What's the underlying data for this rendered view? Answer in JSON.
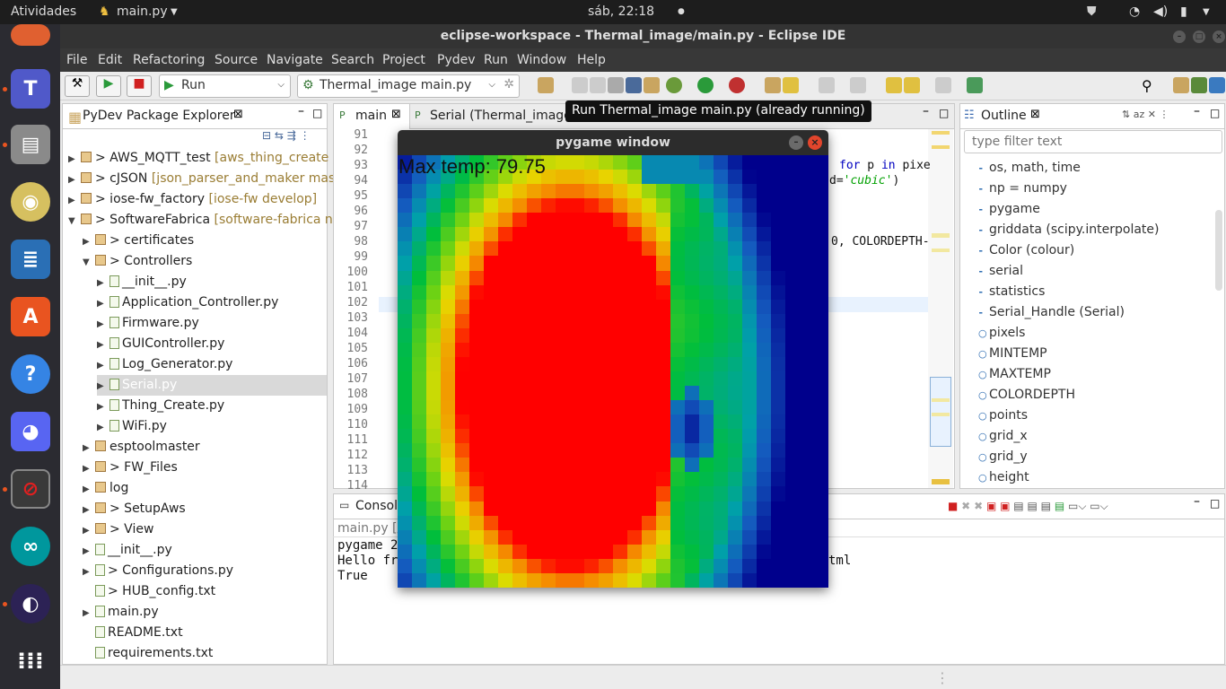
{
  "gnome": {
    "activities": "Atividades",
    "app_menu": "main.py",
    "clock": "sáb, 22:18"
  },
  "window": {
    "title": "eclipse-workspace - Thermal_image/main.py - Eclipse IDE"
  },
  "menu": [
    "File",
    "Edit",
    "Refactoring",
    "Source",
    "Navigate",
    "Search",
    "Project",
    "Pydev",
    "Run",
    "Window",
    "Help"
  ],
  "toolbar": {
    "run_combo": "Run",
    "launch_combo": "Thermal_image main.py"
  },
  "explorer": {
    "title": "PyDev Package Explorer",
    "items": [
      {
        "label": "> AWS_MQTT_test",
        "deco": " [aws_thing_create m",
        "type": "project",
        "indent": 0,
        "arrow": "▶"
      },
      {
        "label": "> cJSON",
        "deco": " [json_parser_and_maker mast",
        "type": "project",
        "indent": 0,
        "arrow": "▶"
      },
      {
        "label": "> iose-fw_factory",
        "deco": " [iose-fw develop]",
        "type": "project",
        "indent": 0,
        "arrow": "▶"
      },
      {
        "label": "> SoftwareFabrica",
        "deco": " [software-fabrica ne",
        "type": "project",
        "indent": 0,
        "arrow": "▼"
      },
      {
        "label": "> certificates",
        "deco": "",
        "type": "package",
        "indent": 1,
        "arrow": "▶"
      },
      {
        "label": "> Controllers",
        "deco": "",
        "type": "package",
        "indent": 1,
        "arrow": "▼"
      },
      {
        "label": "__init__.py",
        "deco": "",
        "type": "file",
        "indent": 2,
        "arrow": "▶"
      },
      {
        "label": "Application_Controller.py",
        "deco": "",
        "type": "file",
        "indent": 2,
        "arrow": "▶"
      },
      {
        "label": "Firmware.py",
        "deco": "",
        "type": "file",
        "indent": 2,
        "arrow": "▶"
      },
      {
        "label": "GUIController.py",
        "deco": "",
        "type": "file",
        "indent": 2,
        "arrow": "▶"
      },
      {
        "label": "Log_Generator.py",
        "deco": "",
        "type": "file",
        "indent": 2,
        "arrow": "▶"
      },
      {
        "label": "Serial.py",
        "deco": "",
        "type": "file",
        "indent": 2,
        "arrow": "▶",
        "selected": true
      },
      {
        "label": "Thing_Create.py",
        "deco": "",
        "type": "file",
        "indent": 2,
        "arrow": "▶"
      },
      {
        "label": "WiFi.py",
        "deco": "",
        "type": "file",
        "indent": 2,
        "arrow": "▶"
      },
      {
        "label": "esptoolmaster",
        "deco": "",
        "type": "package",
        "indent": 1,
        "arrow": "▶"
      },
      {
        "label": "> FW_Files",
        "deco": "",
        "type": "package",
        "indent": 1,
        "arrow": "▶"
      },
      {
        "label": "log",
        "deco": "",
        "type": "package",
        "indent": 1,
        "arrow": "▶"
      },
      {
        "label": "> SetupAws",
        "deco": "",
        "type": "package",
        "indent": 1,
        "arrow": "▶"
      },
      {
        "label": "> View",
        "deco": "",
        "type": "package",
        "indent": 1,
        "arrow": "▶"
      },
      {
        "label": "__init__.py",
        "deco": "",
        "type": "file",
        "indent": 1,
        "arrow": "▶"
      },
      {
        "label": "> Configurations.py",
        "deco": "",
        "type": "file",
        "indent": 1,
        "arrow": "▶"
      },
      {
        "label": "> HUB_config.txt",
        "deco": "",
        "type": "text",
        "indent": 1,
        "arrow": ""
      },
      {
        "label": "main.py",
        "deco": "",
        "type": "file",
        "indent": 1,
        "arrow": "▶"
      },
      {
        "label": "README.txt",
        "deco": "",
        "type": "text",
        "indent": 1,
        "arrow": ""
      },
      {
        "label": "requirements.txt",
        "deco": "",
        "type": "text",
        "indent": 1,
        "arrow": ""
      }
    ]
  },
  "editor": {
    "tabs": [
      "main",
      "Serial (Thermal_image)"
    ],
    "line_numbers": [
      "91",
      "92",
      "93",
      "94",
      "95",
      "96",
      "97",
      "98",
      "99",
      "100",
      "101",
      "102",
      "103",
      "104",
      "105",
      "106",
      "107",
      "108",
      "109",
      "110",
      "111",
      "112",
      "113",
      "114"
    ],
    "code_fragments": {
      "l93_kw": "for",
      "l93_p": " p ",
      "l93_in": "in",
      "l93_rest": " pixe",
      "l94_pre": "d=",
      "l94_str": "'cubic'",
      "l94_post": ")",
      "l98": "0, COLORDEPTH-"
    }
  },
  "tooltip": "Run Thermal_image main.py (already running)",
  "outline": {
    "title": "Outline",
    "filter_placeholder": "type filter text",
    "items": [
      {
        "label": "os, math, time",
        "kind": "import"
      },
      {
        "label": "np = numpy",
        "kind": "import"
      },
      {
        "label": "pygame",
        "kind": "import"
      },
      {
        "label": "griddata (scipy.interpolate)",
        "kind": "import"
      },
      {
        "label": "Color (colour)",
        "kind": "import"
      },
      {
        "label": "serial",
        "kind": "import"
      },
      {
        "label": "statistics",
        "kind": "import"
      },
      {
        "label": "Serial_Handle (Serial)",
        "kind": "import"
      },
      {
        "label": "pixels",
        "kind": "var"
      },
      {
        "label": "MINTEMP",
        "kind": "var"
      },
      {
        "label": "MAXTEMP",
        "kind": "var"
      },
      {
        "label": "COLORDEPTH",
        "kind": "var"
      },
      {
        "label": "points",
        "kind": "var"
      },
      {
        "label": "grid_x",
        "kind": "var"
      },
      {
        "label": "grid_y",
        "kind": "var"
      },
      {
        "label": "height",
        "kind": "var"
      }
    ]
  },
  "console": {
    "tab": "Consol",
    "path": "main.py [/",
    "lines": [
      "pygame 2",
      "Hello fro",
      "True"
    ],
    "line2_tail": "tml"
  },
  "pygame": {
    "title": "pygame window",
    "max_temp": "Max temp: 79.75"
  },
  "colors": {
    "eclipse_bg": "#ececec",
    "dock_bg": "#2b2b31",
    "topbar_bg": "#1d1d1d",
    "hot": "#ff0000"
  }
}
